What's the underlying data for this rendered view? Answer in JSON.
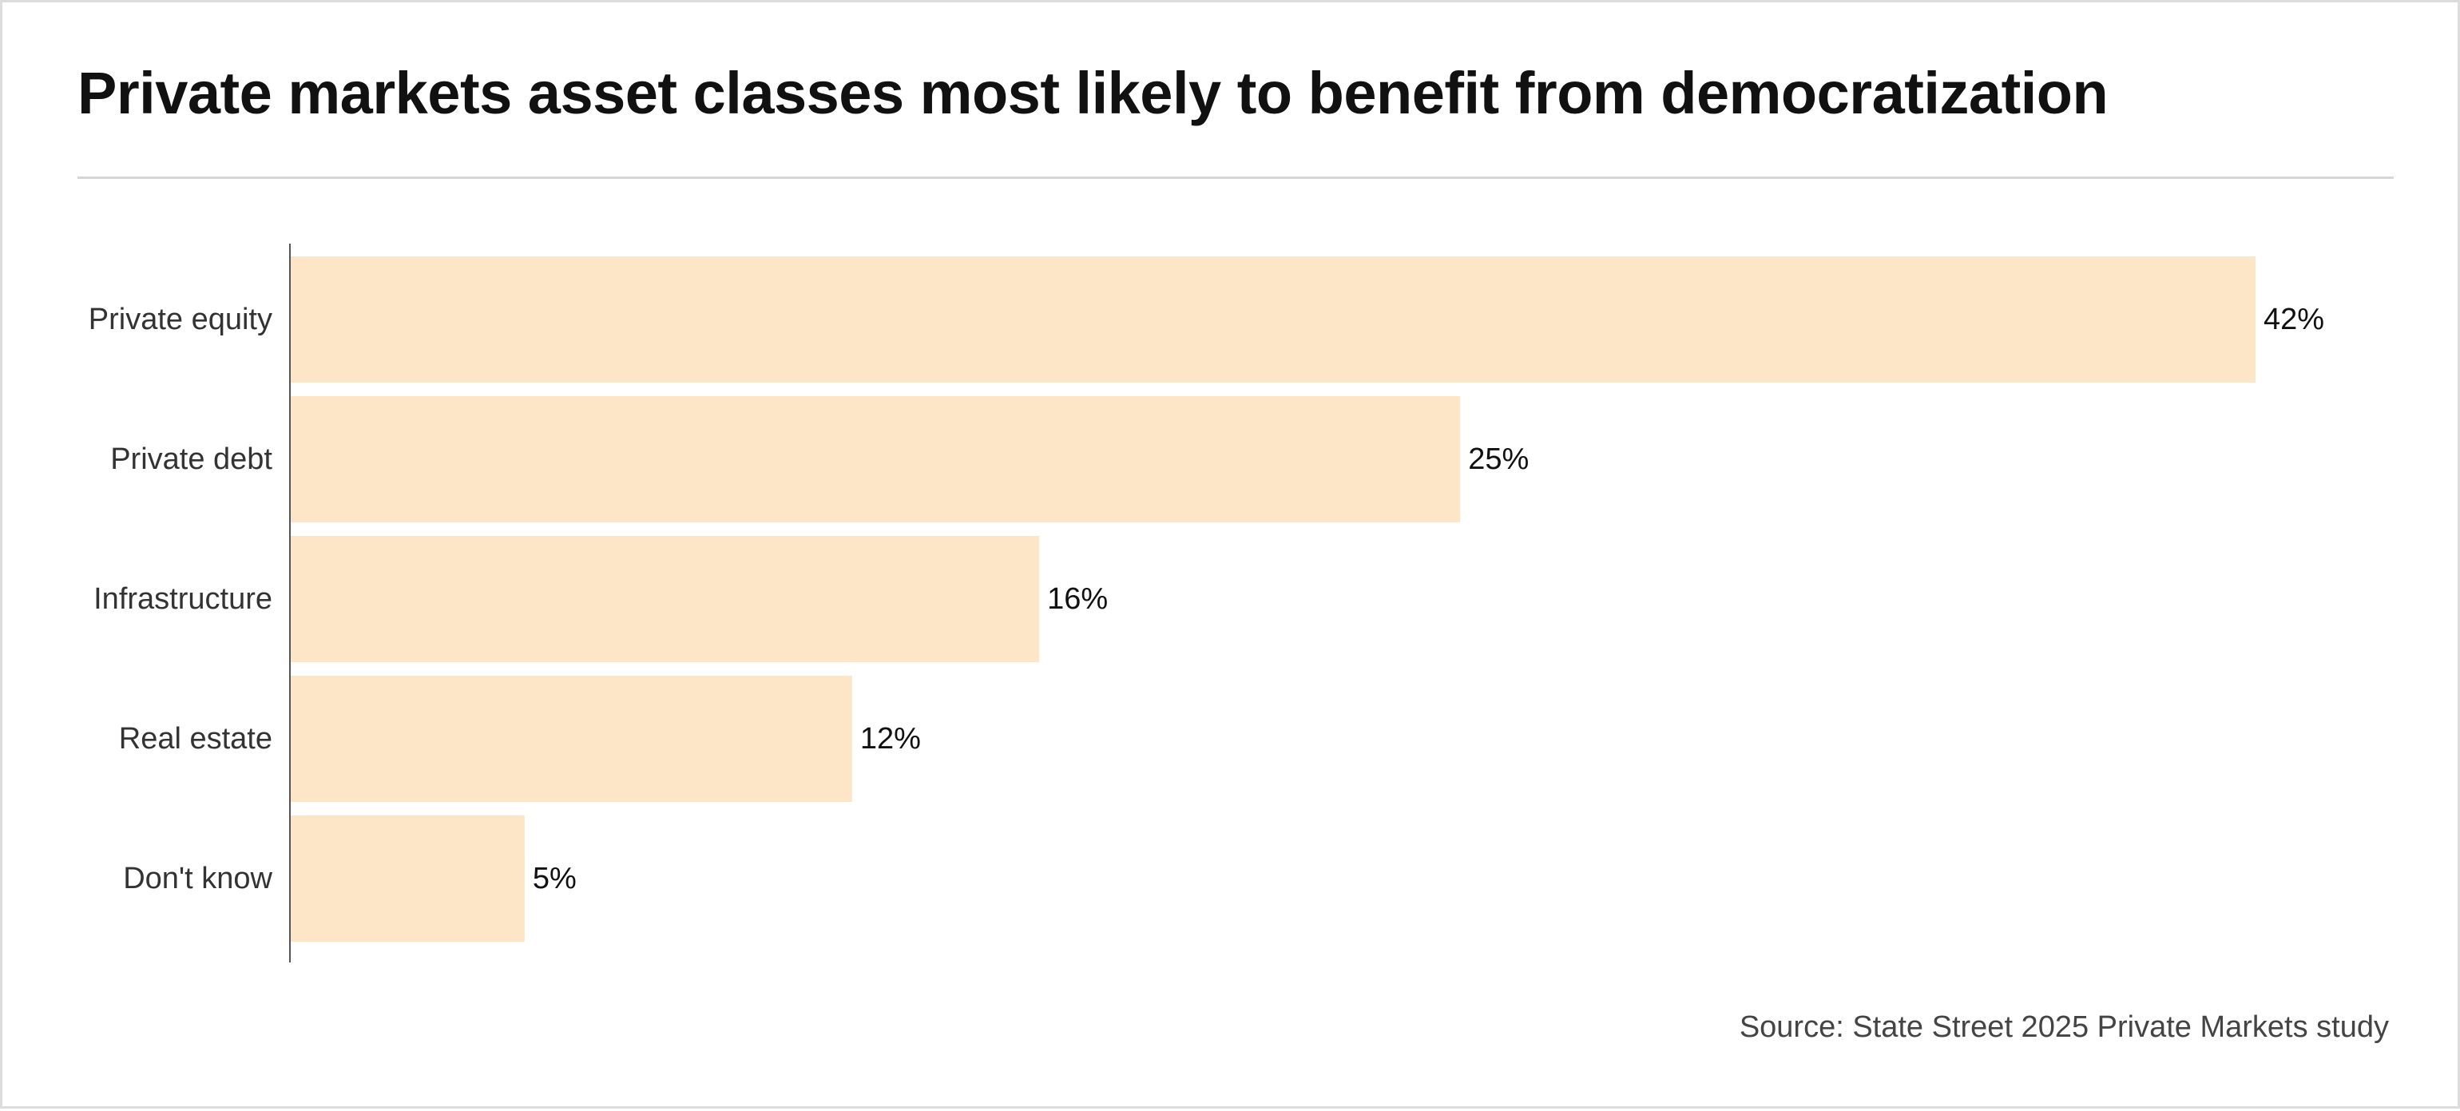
{
  "title": "Private markets asset classes most likely to benefit from democratization",
  "source": "Source: State Street 2025 Private Markets study",
  "colors": {
    "bar": "#fde6c8",
    "axis": "#555555",
    "rule": "#d6d6d6"
  },
  "chart_data": {
    "type": "bar",
    "orientation": "horizontal",
    "title": "Private markets asset classes most likely to benefit from democratization",
    "categories": [
      "Private equity",
      "Private debt",
      "Infrastructure",
      "Real estate",
      "Don't know"
    ],
    "values": [
      42,
      25,
      16,
      12,
      5
    ],
    "value_labels": [
      "42%",
      "25%",
      "16%",
      "12%",
      "5%"
    ],
    "unit": "%",
    "xlim": [
      0,
      42
    ],
    "grid": false,
    "legend": "none"
  }
}
